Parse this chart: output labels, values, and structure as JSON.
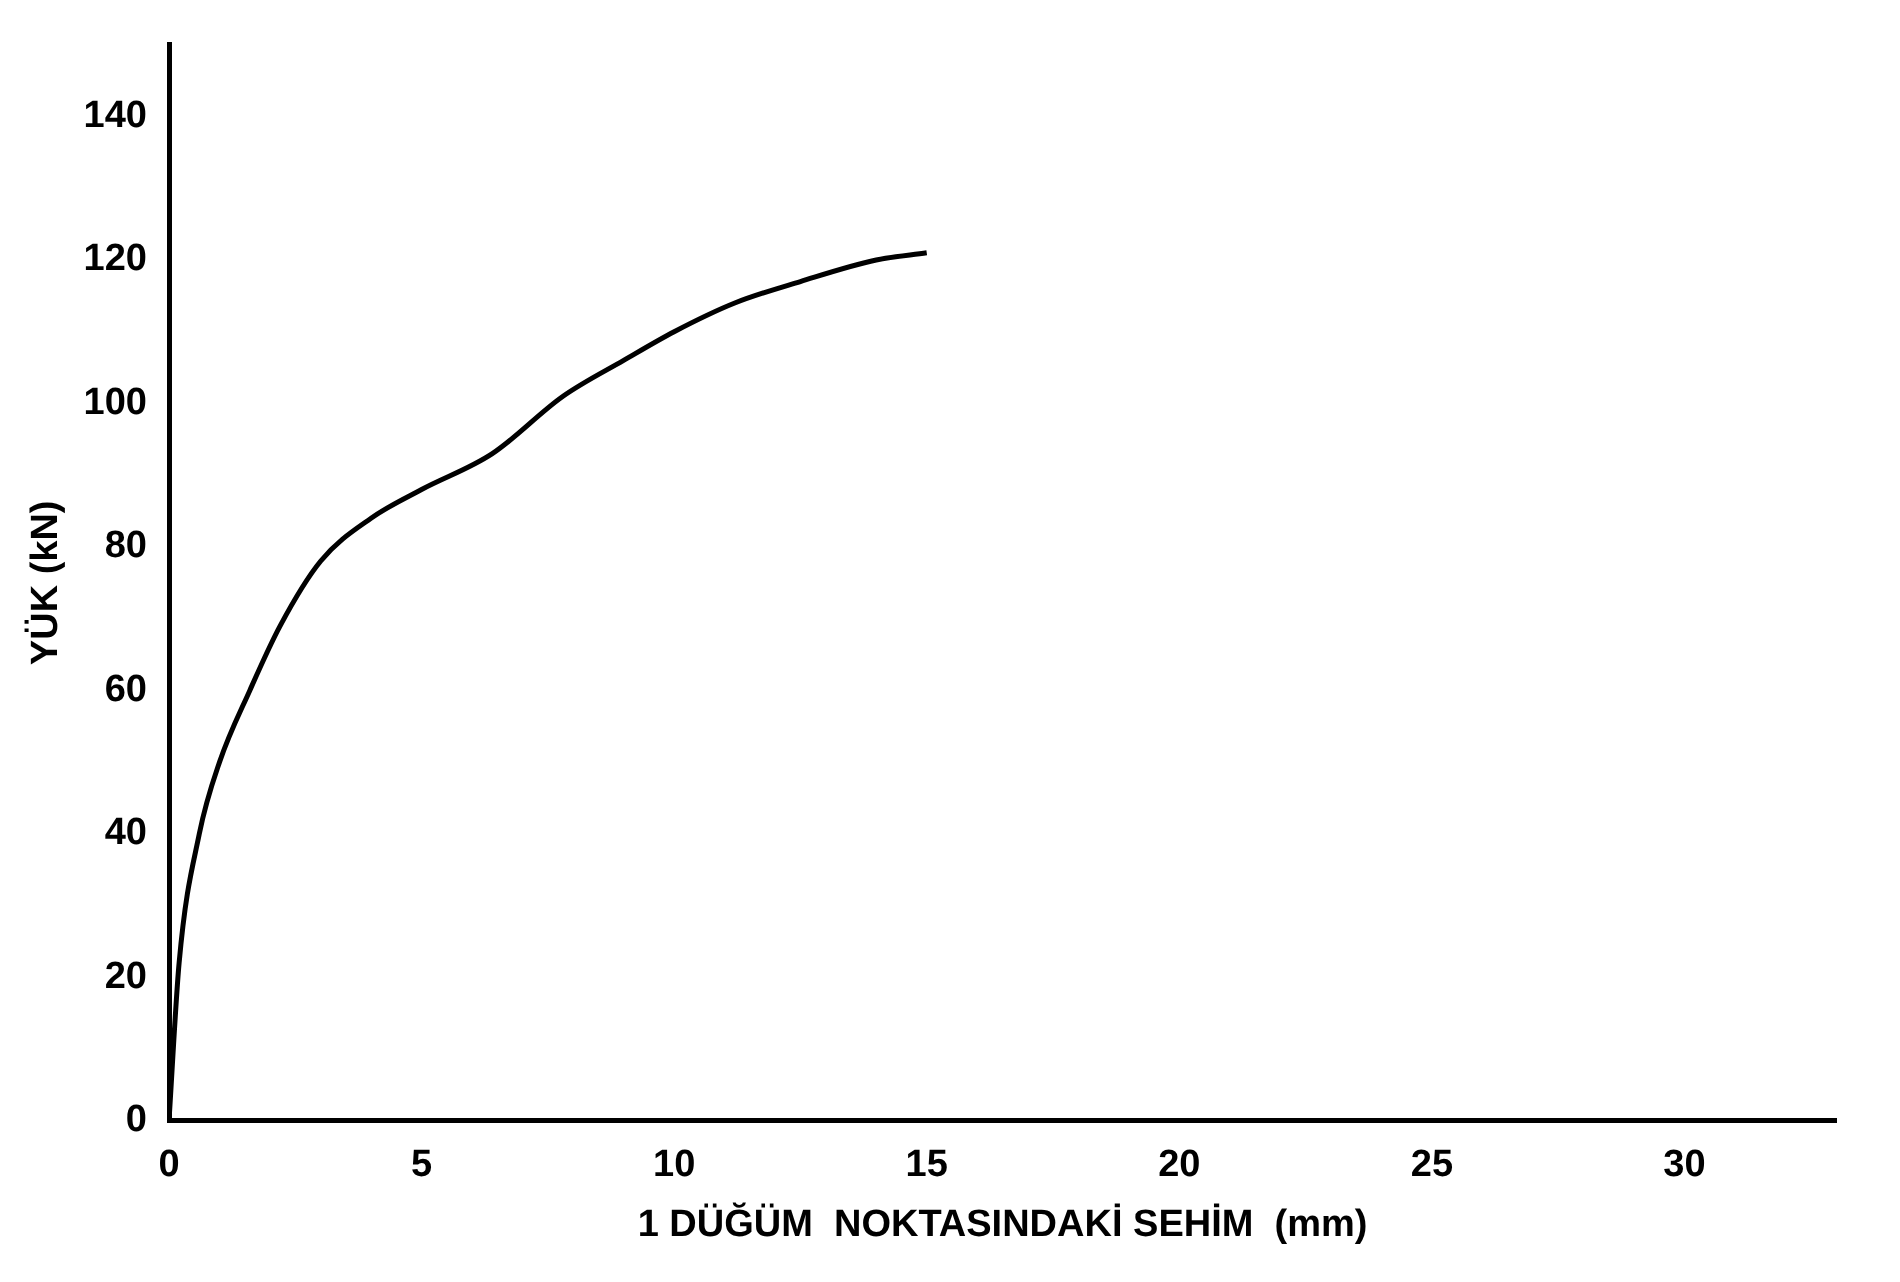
{
  "chart_data": {
    "type": "line",
    "xlabel": "1 DÜĞÜM  NOKTASINDAKİ SEHİM  (mm)",
    "ylabel": "YÜK (kN)",
    "x": [
      0,
      0.2,
      0.6,
      1.0,
      1.6,
      2.2,
      3.0,
      4.0,
      5.0,
      6.4,
      7.8,
      9.0,
      10.0,
      11.2,
      12.5,
      14.0,
      15.0
    ],
    "series": [
      {
        "color": "#000000",
        "values": [
          0,
          22,
          40,
          50,
          60,
          69,
          78,
          84,
          88,
          93,
          101,
          106,
          110,
          114,
          117,
          120,
          121
        ]
      }
    ],
    "xlim": [
      0,
      33
    ],
    "ylim": [
      0,
      150
    ],
    "xticks": [
      0,
      5,
      10,
      15,
      20,
      25,
      30
    ],
    "yticks": [
      0,
      20,
      40,
      60,
      80,
      100,
      120,
      140
    ],
    "grid": false,
    "legend": false,
    "marker": "none",
    "line_style": "solid"
  }
}
